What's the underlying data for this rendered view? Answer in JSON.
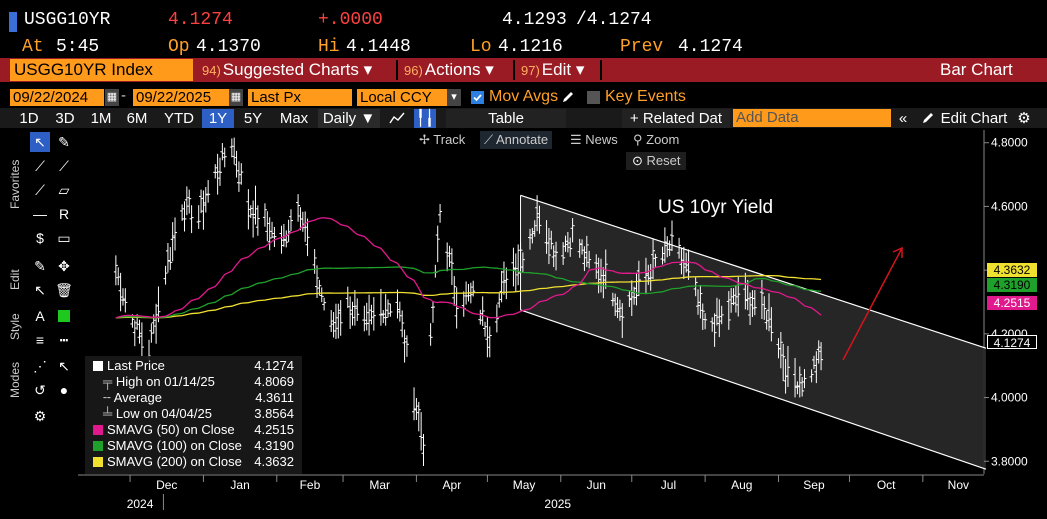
{
  "quote": {
    "ticker": "USGG10YR",
    "last": "4.1274",
    "change": "+.0000",
    "bid": "4.1293",
    "ask": "/4.1274",
    "at_label": "At",
    "time": "5:45",
    "op_label": "Op",
    "open": "4.1370",
    "hi_label": "Hi",
    "high": "4.1448",
    "lo_label": "Lo",
    "low": "4.1216",
    "prev_label": "Prev",
    "prev": "4.1274"
  },
  "toolbar": {
    "index_name": "USGG10YR Index",
    "suggested_num": "94)",
    "suggested_label": "Suggested Charts",
    "actions_num": "96)",
    "actions_label": "Actions",
    "edit_num": "97)",
    "edit_label": "Edit",
    "chart_type": "Bar Chart"
  },
  "date_row": {
    "start": "09/22/2024",
    "end": "09/22/2025",
    "field": "Last Px",
    "currency": "Local CCY",
    "mov_avgs": "Mov Avgs",
    "key_events": "Key Events"
  },
  "range_row": {
    "ranges": [
      "1D",
      "3D",
      "1M",
      "6M",
      "YTD",
      "1Y",
      "5Y",
      "Max"
    ],
    "selected": "1Y",
    "period": "Daily ▼",
    "table": "Table",
    "related": "+ Related Dat",
    "add_data_placeholder": "Add Data",
    "edit_chart": "Edit Chart"
  },
  "chart_toolbar": {
    "track": "Track",
    "annotate": "Annotate",
    "news": "News",
    "zoom": "Zoom",
    "reset": "Reset"
  },
  "side_tabs": {
    "favorites": "Favorites",
    "edit": "Edit",
    "style": "Style",
    "modes": "Modes"
  },
  "legend": {
    "last_price_label": "Last Price",
    "last_price": "4.1274",
    "high_label": "High on 01/14/25",
    "high": "4.8069",
    "average_label": "Average",
    "average": "4.3611",
    "low_label": "Low on 04/04/25",
    "low": "3.8564",
    "sma50_label": "SMAVG (50)  on Close",
    "sma50": "4.2515",
    "sma100_label": "SMAVG (100)  on Close",
    "sma100": "4.3190",
    "sma200_label": "SMAVG (200)  on Close",
    "sma200": "4.3632"
  },
  "price_tags": {
    "sma200": "4.3632",
    "sma100": "4.3190",
    "sma50": "4.2515",
    "last": "4.1274"
  },
  "colors": {
    "sma50": "#e0198c",
    "sma100": "#1fa02a",
    "sma200": "#f0e030",
    "annotation_arrow": "#d4141e",
    "accent_orange": "#ff9a1a",
    "toolbar_red": "#9b1b24"
  },
  "chart_data": {
    "type": "bar",
    "title": "US 10yr Yield",
    "y_ticks": [
      "4.8000",
      "4.6000",
      "4.4000",
      "4.2000",
      "4.0000",
      "3.8000"
    ],
    "ylim": [
      3.76,
      4.84
    ],
    "x_ticks": [
      "Dec",
      "Jan",
      "Feb",
      "Mar",
      "Apr",
      "May",
      "Jun",
      "Jul",
      "Aug",
      "Sep",
      "Oct",
      "Nov"
    ],
    "x_years": [
      "2024",
      "2025"
    ],
    "price_series": {
      "name": "Last Price",
      "points": [
        [
          "2024-11-25",
          4.4
        ],
        [
          "2024-12-02",
          4.24
        ],
        [
          "2024-12-09",
          4.15
        ],
        [
          "2024-12-16",
          4.4
        ],
        [
          "2024-12-23",
          4.6
        ],
        [
          "2024-12-30",
          4.57
        ],
        [
          "2025-01-06",
          4.7
        ],
        [
          "2025-01-13",
          4.8
        ],
        [
          "2025-01-20",
          4.6
        ],
        [
          "2025-01-27",
          4.55
        ],
        [
          "2025-02-03",
          4.48
        ],
        [
          "2025-02-10",
          4.62
        ],
        [
          "2025-02-17",
          4.4
        ],
        [
          "2025-02-24",
          4.22
        ],
        [
          "2025-03-03",
          4.3
        ],
        [
          "2025-03-10",
          4.22
        ],
        [
          "2025-03-17",
          4.28
        ],
        [
          "2025-03-24",
          4.3
        ],
        [
          "2025-03-31",
          4.01
        ],
        [
          "2025-04-04",
          3.86
        ],
        [
          "2025-04-11",
          4.58
        ],
        [
          "2025-04-18",
          4.31
        ],
        [
          "2025-04-25",
          4.32
        ],
        [
          "2025-05-02",
          4.2
        ],
        [
          "2025-05-09",
          4.38
        ],
        [
          "2025-05-16",
          4.45
        ],
        [
          "2025-05-23",
          4.58
        ],
        [
          "2025-05-30",
          4.45
        ],
        [
          "2025-06-06",
          4.51
        ],
        [
          "2025-06-13",
          4.42
        ],
        [
          "2025-06-20",
          4.38
        ],
        [
          "2025-06-27",
          4.27
        ],
        [
          "2025-07-04",
          4.35
        ],
        [
          "2025-07-11",
          4.42
        ],
        [
          "2025-07-18",
          4.48
        ],
        [
          "2025-07-25",
          4.4
        ],
        [
          "2025-08-01",
          4.22
        ],
        [
          "2025-08-08",
          4.25
        ],
        [
          "2025-08-15",
          4.32
        ],
        [
          "2025-08-22",
          4.3
        ],
        [
          "2025-08-29",
          4.25
        ],
        [
          "2025-09-05",
          4.07
        ],
        [
          "2025-09-12",
          4.05
        ],
        [
          "2025-09-19",
          4.13
        ]
      ]
    },
    "moving_averages": [
      {
        "name": "SMAVG (50)",
        "last": 4.2515
      },
      {
        "name": "SMAVG (100)",
        "last": 4.319
      },
      {
        "name": "SMAVG (200)",
        "last": 4.3632
      }
    ],
    "stats": {
      "last": 4.1274,
      "high": 4.8069,
      "average": 4.3611,
      "low": 3.8564
    },
    "grid": false,
    "legend_position": "bottom-left"
  }
}
